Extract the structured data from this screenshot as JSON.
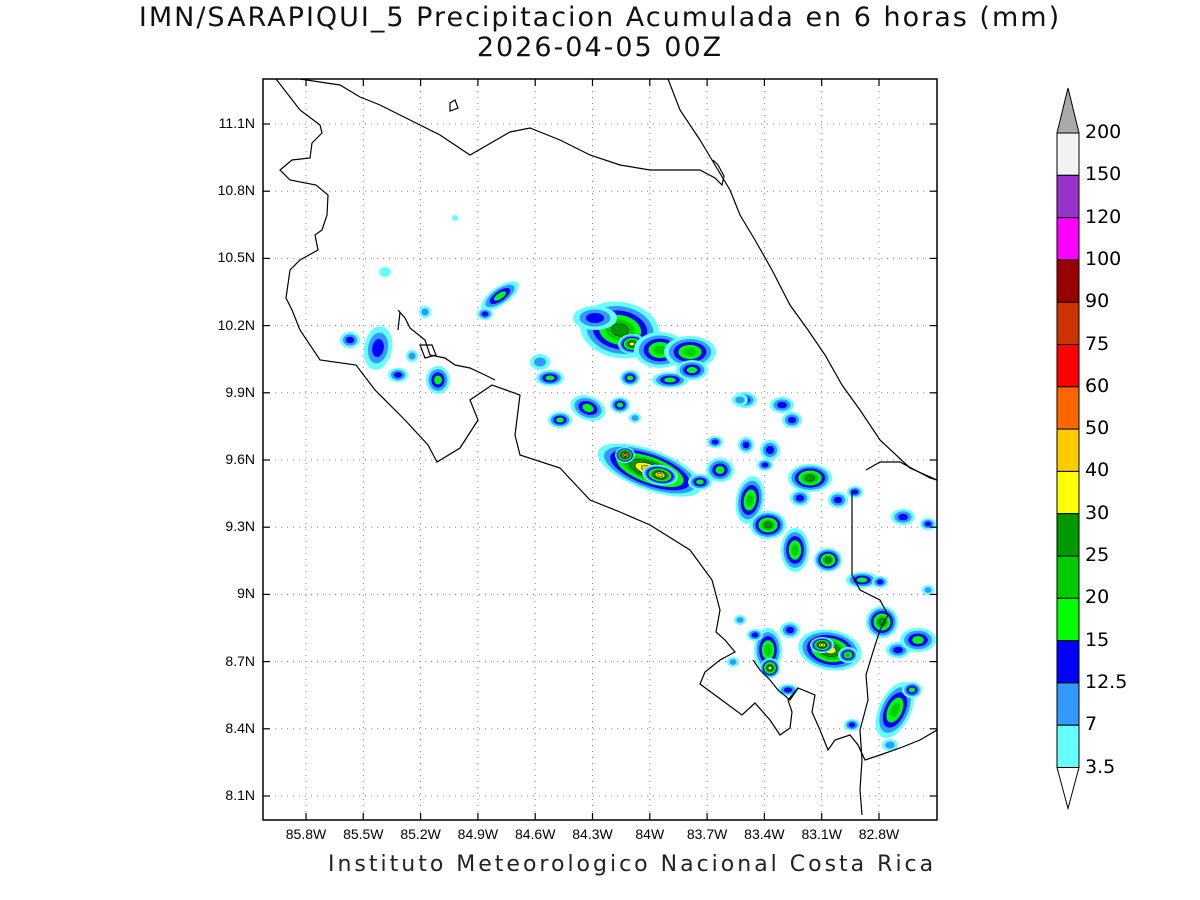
{
  "title_line1": "IMN/SARAPIQUI_5 Precipitacion Acumulada en 6 horas (mm)",
  "title_line2": "2026-04-05 00Z",
  "footer": "Instituto Meteorologico Nacional Costa Rica",
  "lat_labels": [
    "11.1N",
    "10.8N",
    "10.5N",
    "10.2N",
    "9.9N",
    "9.6N",
    "9.3N",
    "9N",
    "8.7N",
    "8.4N",
    "8.1N"
  ],
  "lon_labels": [
    "85.8W",
    "85.5W",
    "85.2W",
    "84.9W",
    "84.6W",
    "84.3W",
    "84W",
    "83.7W",
    "83.4W",
    "83.1W",
    "82.8W"
  ],
  "colorbar": {
    "labels": [
      "200",
      "150",
      "120",
      "100",
      "90",
      "75",
      "60",
      "50",
      "40",
      "30",
      "25",
      "20",
      "15",
      "12.5",
      "7",
      "3.5"
    ],
    "colors": [
      "#f2f2f2",
      "#9933cc",
      "#ff00ff",
      "#990000",
      "#cc3300",
      "#ff0000",
      "#ff6600",
      "#ffcc00",
      "#ffff00",
      "#009900",
      "#00cc00",
      "#00ff00",
      "#0000ff",
      "#3399ff",
      "#66ffff"
    ],
    "over_color": "#aaaaaa",
    "under_color": "#ffffff"
  },
  "colors": {
    "grid": "#888888",
    "coast": "#000000"
  }
}
